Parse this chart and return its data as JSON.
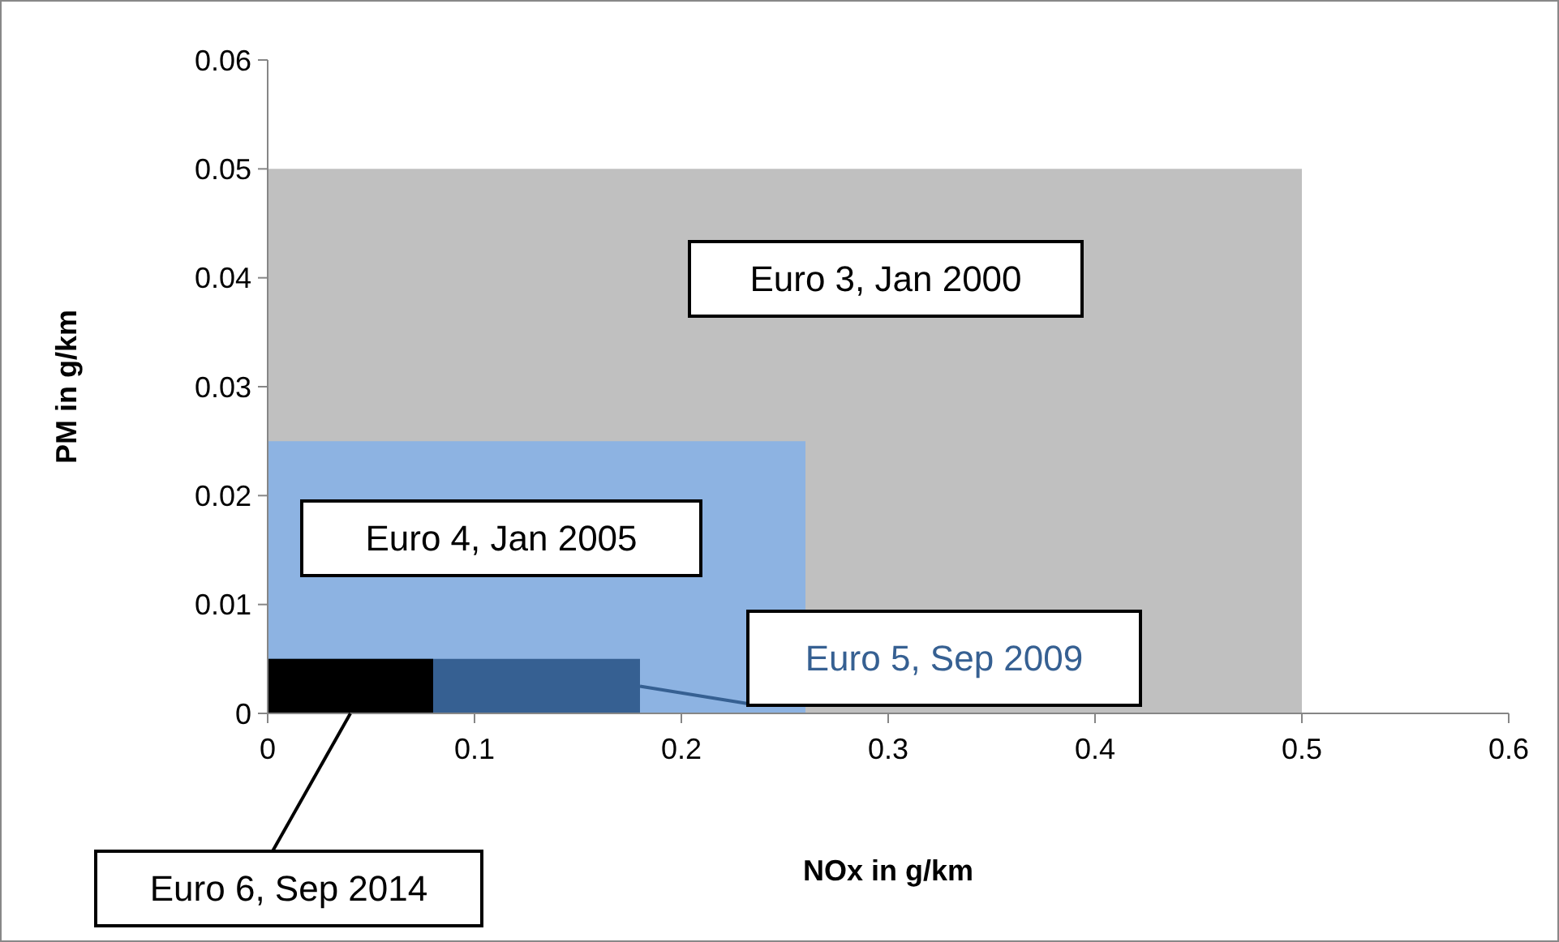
{
  "chart_data": {
    "type": "area",
    "xlabel": "NOx in g/km",
    "ylabel": "PM in g/km",
    "xlim": [
      0,
      0.6
    ],
    "ylim": [
      0,
      0.06
    ],
    "xticks": [
      0,
      0.1,
      0.2,
      0.3,
      0.4,
      0.5,
      0.6
    ],
    "yticks": [
      0,
      0.01,
      0.02,
      0.03,
      0.04,
      0.05,
      0.06
    ],
    "grid": false,
    "legend": false,
    "series": [
      {
        "name": "Euro 3, Jan 2000",
        "color": "#c0c0c0",
        "x": [
          0,
          0.5
        ],
        "values": [
          0.05,
          0.05
        ]
      },
      {
        "name": "Euro 4, Jan 2005",
        "color": "#8db3e2",
        "x": [
          0,
          0.26
        ],
        "values": [
          0.025,
          0.025
        ]
      },
      {
        "name": "Euro 5, Sep 2009",
        "color": "#366092",
        "x": [
          0,
          0.18
        ],
        "values": [
          0.005,
          0.005
        ]
      },
      {
        "name": "Euro 6, Sep 2014",
        "color": "#000000",
        "x": [
          0,
          0.08
        ],
        "values": [
          0.005,
          0.005
        ]
      }
    ]
  }
}
